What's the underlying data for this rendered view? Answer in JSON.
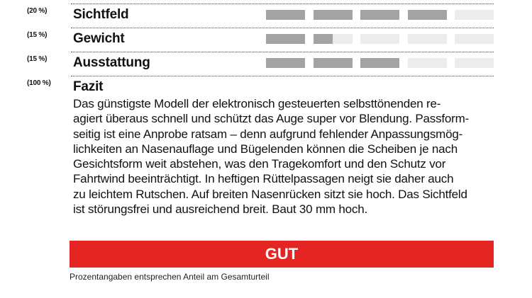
{
  "ratings": [
    {
      "percent": "(20 %)",
      "label": "Sichtfeld",
      "segments": [
        1,
        1,
        1,
        1,
        0
      ]
    },
    {
      "percent": "(15 %)",
      "label": "Gewicht",
      "segments": [
        1,
        0.5,
        0,
        0,
        0
      ]
    },
    {
      "percent": "(15 %)",
      "label": "Ausstattung",
      "segments": [
        1,
        1,
        1,
        0,
        0
      ]
    }
  ],
  "fazit": {
    "percent": "(100 %)",
    "title": "Fazit",
    "lines": [
      "Das günstigste Modell der elektronisch gesteuerten selbsttönenden re-",
      "agiert überaus schnell und schützt das Auge super vor Blendung. Passform-",
      "seitig ist eine Anprobe ratsam – denn aufgrund fehlender Anpassungsmög-",
      "lichkeiten an Nasenauflage und Bügelenden können die Scheiben je nach",
      "Gesichtsform weit abstehen, was den Tragekomfort und den Schutz vor",
      "Fahrtwind beeinträchtigt. In heftigen Rüttelpassagen neigt sie daher auch",
      "zu leichtem Rutschen. Auf breiten Nasenrücken sitzt sie hoch. Das Sichtfeld",
      "ist störungsfrei und ausreichend breit. Baut 30 mm hoch."
    ]
  },
  "verdict": "GUT",
  "footnote": "Prozentangaben entsprechen Anteil am Gesamturteil",
  "colors": {
    "verdict_bg": "#e52521",
    "bar_fill": "#a3a3a3",
    "bar_empty": "#ececec"
  }
}
